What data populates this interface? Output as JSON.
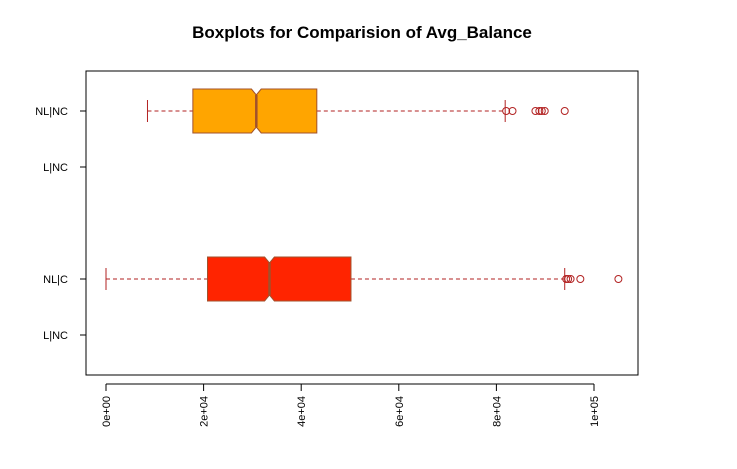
{
  "chart_data": {
    "type": "boxplot",
    "orientation": "horizontal",
    "title": "Boxplots for Comparision of Avg_Balance",
    "xlim": [
      -2500,
      108000
    ],
    "x_ticks": [
      0,
      20000,
      40000,
      60000,
      80000,
      100000
    ],
    "x_tick_labels": [
      "0e+00",
      "2e+04",
      "4e+04",
      "6e+04",
      "8e+04",
      "1e+05"
    ],
    "categories": [
      "L|NC",
      "NL|C",
      "L|NC",
      "NL|NC"
    ],
    "boxes": [
      {
        "label": "L|NC",
        "empty": true
      },
      {
        "label": "NL|C",
        "empty": false,
        "fill": "#ff2400",
        "whisker_low": 0,
        "q1": 20800,
        "median": 33500,
        "q3": 50200,
        "whisker_high": 94000,
        "notch_low": 32500,
        "notch_high": 34500,
        "outliers": [
          94300,
          94700,
          95200,
          97200,
          105000
        ]
      },
      {
        "label": "L|NC",
        "empty": true
      },
      {
        "label": "NL|NC",
        "empty": false,
        "fill": "#ffa500",
        "whisker_low": 8500,
        "q1": 17800,
        "median": 30800,
        "q3": 43200,
        "whisker_high": 81800,
        "notch_low": 29800,
        "notch_high": 31800,
        "outliers": [
          82000,
          83300,
          88000,
          88800,
          89300,
          89900,
          94000
        ]
      }
    ],
    "colors": {
      "border": "#a0522d",
      "whisker": "#b22222",
      "outlier": "#b22222"
    },
    "grid": false,
    "legend": "none"
  }
}
